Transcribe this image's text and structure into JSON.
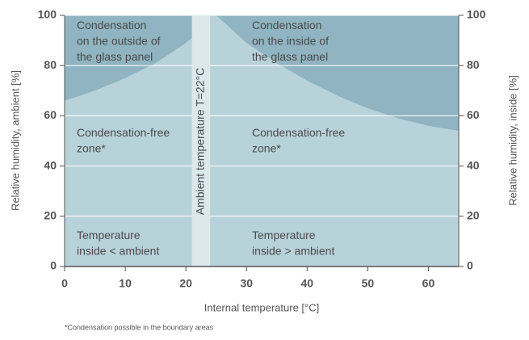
{
  "chart_data": {
    "type": "area",
    "xlabel": "Internal temperature [°C]",
    "ylabel": "Relative humidity, ambient [%]",
    "y2label": "Relative humidity, inside [%]",
    "footnote": "*Condensation possible in the boundary areas",
    "xlim": [
      0,
      65
    ],
    "xticks": [
      0,
      10,
      20,
      30,
      40,
      50,
      60
    ],
    "ylim": [
      0,
      100
    ],
    "yticks": [
      0,
      20,
      40,
      60,
      80,
      100
    ],
    "y2lim": [
      0,
      100
    ],
    "y2ticks": [
      0,
      20,
      40,
      60,
      80,
      100
    ],
    "grid": true,
    "background": "#b8d2da",
    "series": [
      {
        "color": "#90b4c1",
        "x": [
          0,
          5,
          10,
          15,
          20,
          21
        ],
        "values": [
          66,
          70,
          75,
          81,
          89,
          91
        ]
      },
      {
        "color": "#90b4c1",
        "x": [
          25,
          30,
          35,
          40,
          45,
          50,
          55,
          60,
          65
        ],
        "values": [
          100,
          89,
          81,
          74,
          68,
          63,
          59,
          56,
          54
        ]
      }
    ],
    "band": {
      "x": [
        21,
        24
      ],
      "color": "#dbe8ec",
      "label": "Ambient temperature T=22°C"
    },
    "annotations": [
      [
        "Condensation",
        "on the outside of",
        "the glass panel"
      ],
      [
        "Condensation",
        "on the inside of",
        "the glass panel"
      ],
      [
        "Condensation-free",
        "zone*"
      ],
      [
        "Condensation-free",
        "zone*"
      ],
      [
        "Temperature",
        "inside < ambient"
      ],
      [
        "Temperature",
        "inside > ambient"
      ]
    ]
  }
}
